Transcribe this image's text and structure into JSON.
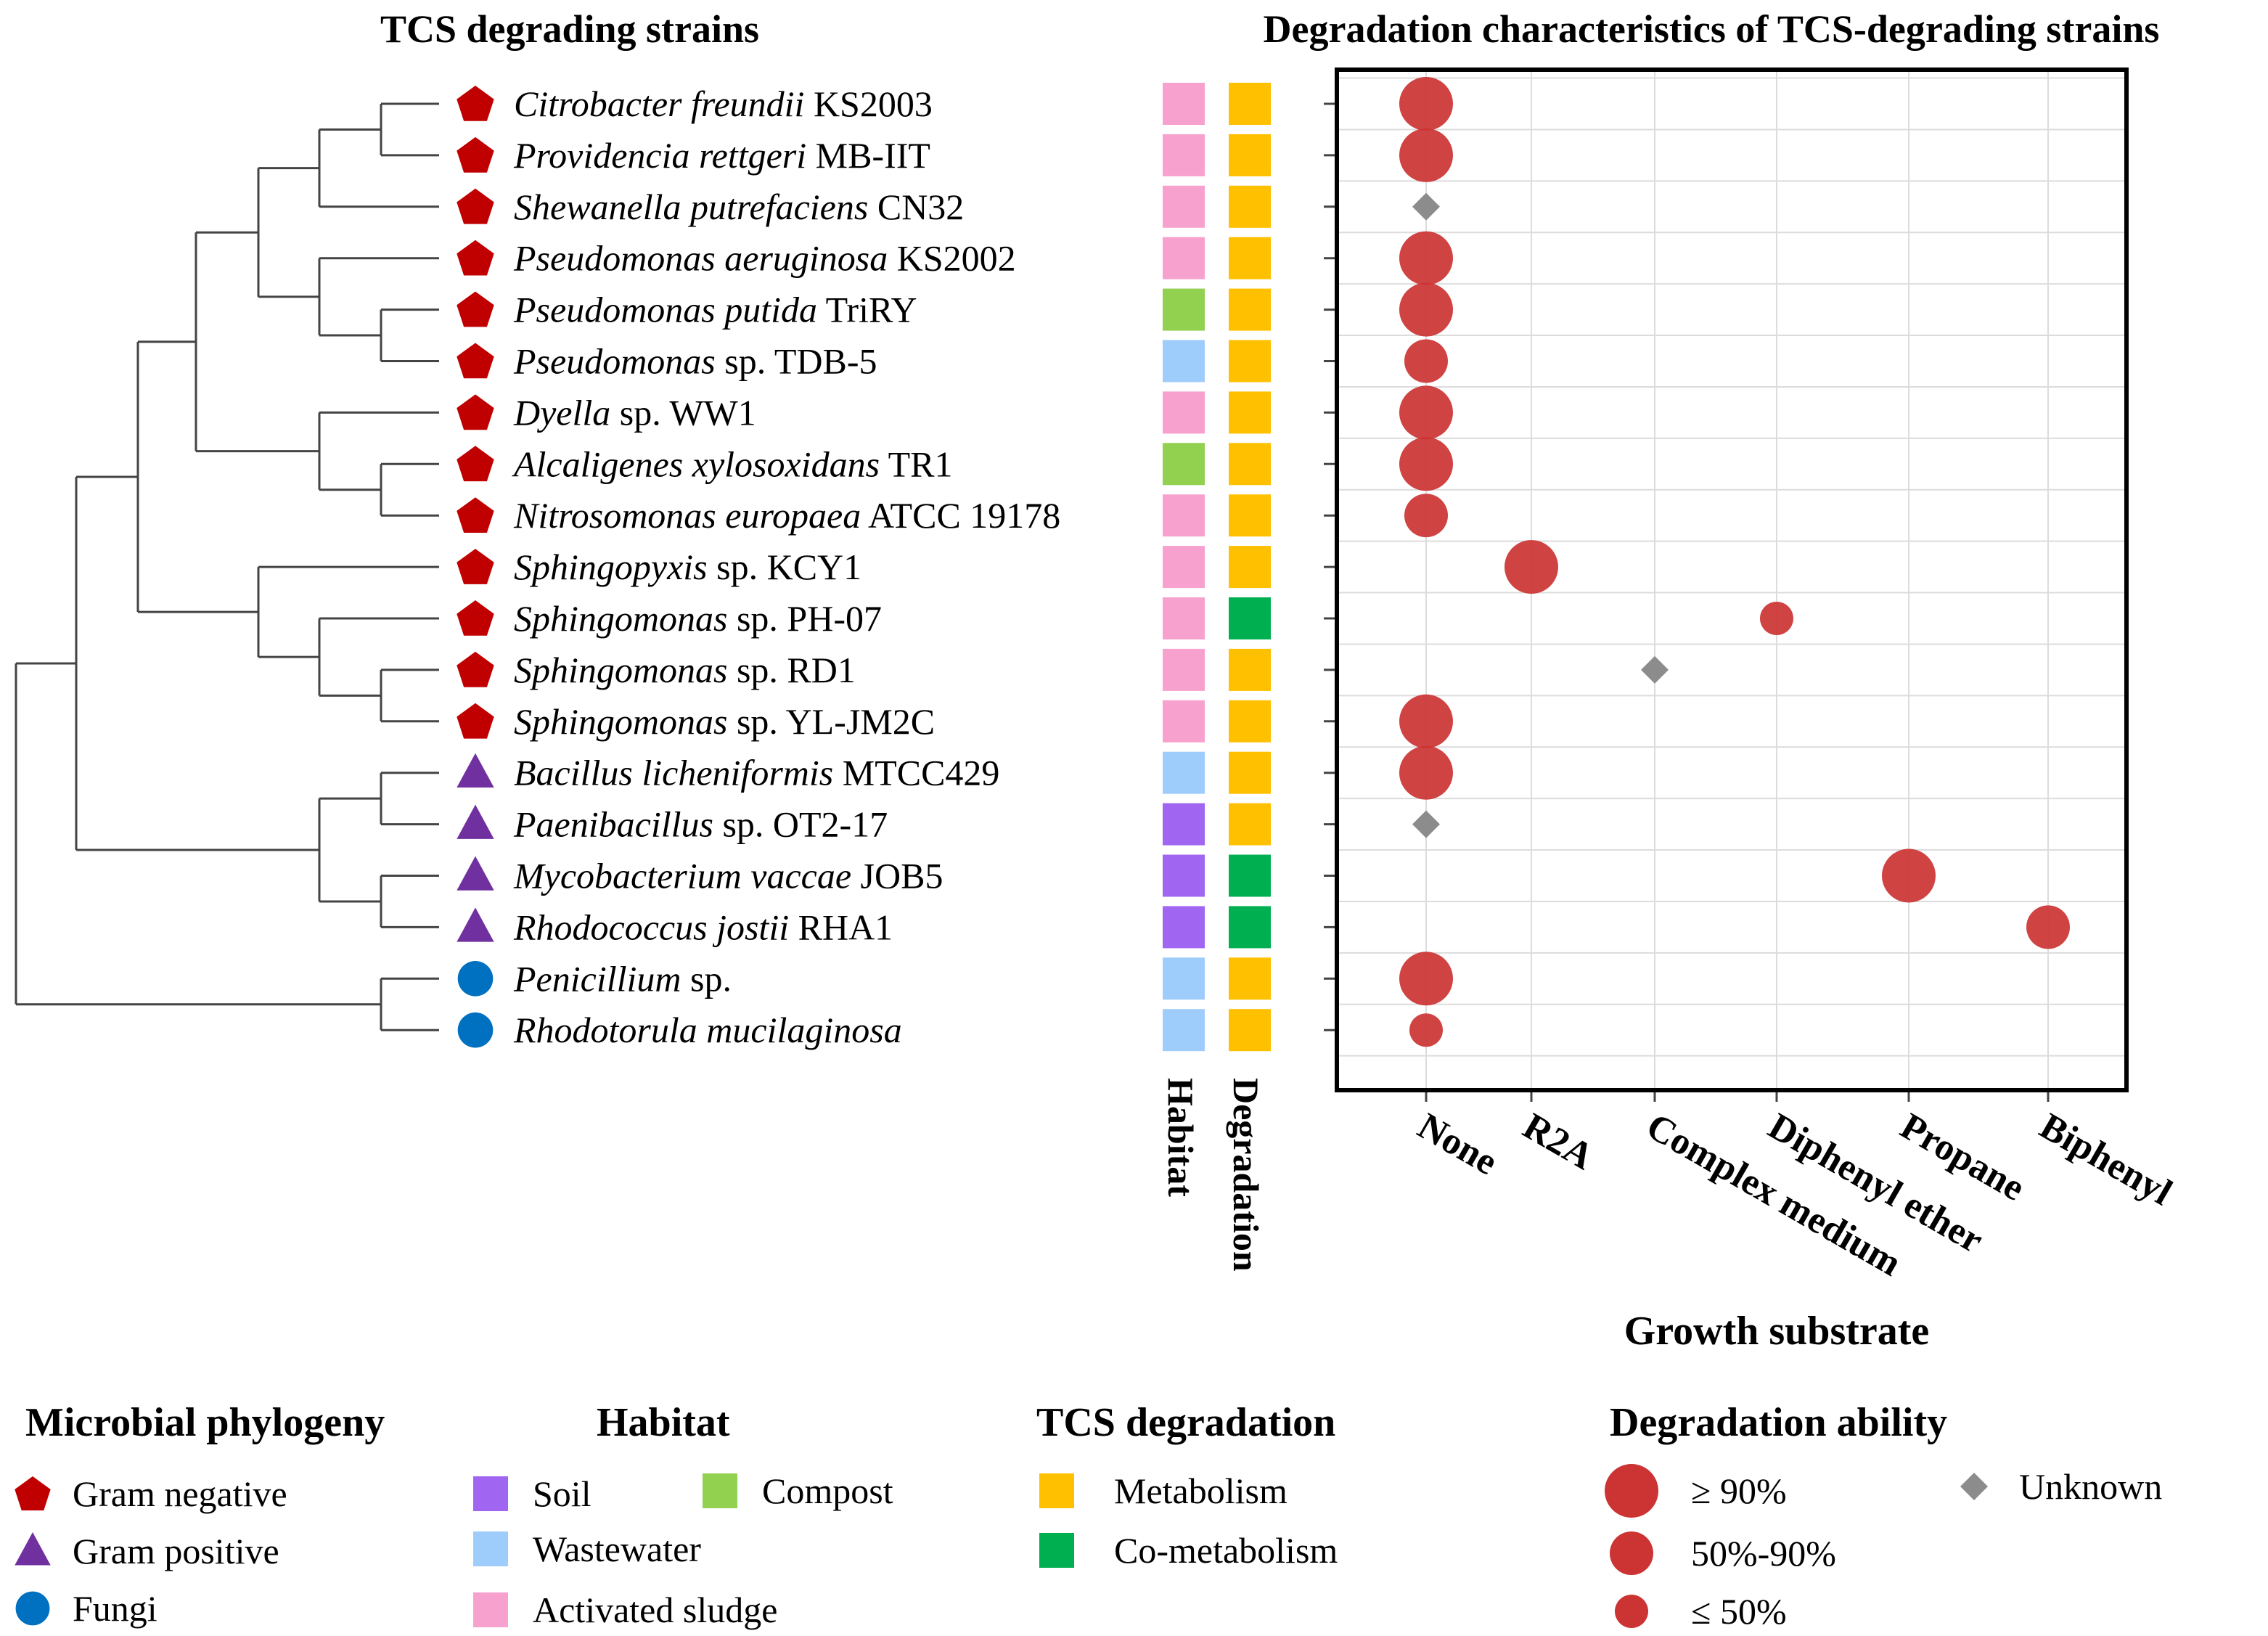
{
  "titles": {
    "tree": "TCS degrading strains",
    "chart": "Degradation characteristics of TCS-degrading strains"
  },
  "column_labels": {
    "habitat": "Habitat",
    "degradation": "Degradation"
  },
  "colors": {
    "gram_negative": "#c00000",
    "gram_positive": "#7030a0",
    "fungi": "#0070c0",
    "soil": "#a066f2",
    "wastewater": "#9fcdfb",
    "activated_sludge": "#f7a1cf",
    "compost": "#92d050",
    "metabolism": "#ffc000",
    "co_metabolism": "#00b050",
    "bubble": "#cc3333",
    "unknown": "#8c8c8c"
  },
  "strains": [
    {
      "genus": "Citrobacter freundii",
      "suffix": " KS2003",
      "group": "gram_negative",
      "habitat": "activated_sludge",
      "degradation": "metabolism"
    },
    {
      "genus": "Providencia rettgeri",
      "suffix": " MB-IIT",
      "group": "gram_negative",
      "habitat": "activated_sludge",
      "degradation": "metabolism"
    },
    {
      "genus": "Shewanella putrefaciens",
      "suffix": " CN32",
      "group": "gram_negative",
      "habitat": "activated_sludge",
      "degradation": "metabolism"
    },
    {
      "genus": "Pseudomonas aeruginosa",
      "suffix": " KS2002",
      "group": "gram_negative",
      "habitat": "activated_sludge",
      "degradation": "metabolism"
    },
    {
      "genus": "Pseudomonas putida",
      "suffix": " TriRY",
      "group": "gram_negative",
      "habitat": "compost",
      "degradation": "metabolism"
    },
    {
      "genus": "Pseudomonas",
      "suffix": " sp. TDB-5",
      "group": "gram_negative",
      "habitat": "wastewater",
      "degradation": "metabolism"
    },
    {
      "genus": "Dyella",
      "suffix": " sp. WW1",
      "group": "gram_negative",
      "habitat": "activated_sludge",
      "degradation": "metabolism"
    },
    {
      "genus": "Alcaligenes xylosoxidans",
      "suffix": " TR1",
      "group": "gram_negative",
      "habitat": "compost",
      "degradation": "metabolism"
    },
    {
      "genus": "Nitrosomonas europaea",
      "suffix": " ATCC 19178",
      "group": "gram_negative",
      "habitat": "activated_sludge",
      "degradation": "metabolism"
    },
    {
      "genus": "Sphingopyxis",
      "suffix": " sp. KCY1",
      "group": "gram_negative",
      "habitat": "activated_sludge",
      "degradation": "metabolism"
    },
    {
      "genus": "Sphingomonas",
      "suffix": " sp. PH-07",
      "group": "gram_negative",
      "habitat": "activated_sludge",
      "degradation": "co_metabolism"
    },
    {
      "genus": "Sphingomonas",
      "suffix": " sp. RD1",
      "group": "gram_negative",
      "habitat": "activated_sludge",
      "degradation": "metabolism"
    },
    {
      "genus": "Sphingomonas",
      "suffix": " sp. YL-JM2C",
      "group": "gram_negative",
      "habitat": "activated_sludge",
      "degradation": "metabolism"
    },
    {
      "genus": "Bacillus licheniformis",
      "suffix": " MTCC429",
      "group": "gram_positive",
      "habitat": "wastewater",
      "degradation": "metabolism"
    },
    {
      "genus": "Paenibacillus",
      "suffix": " sp. OT2-17",
      "group": "gram_positive",
      "habitat": "soil",
      "degradation": "metabolism"
    },
    {
      "genus": "Mycobacterium vaccae",
      "suffix": " JOB5",
      "group": "gram_positive",
      "habitat": "soil",
      "degradation": "co_metabolism"
    },
    {
      "genus": "Rhodococcus jostii",
      "suffix": " RHA1",
      "group": "gram_positive",
      "habitat": "soil",
      "degradation": "co_metabolism"
    },
    {
      "genus": "Penicillium",
      "suffix": " sp.",
      "group": "fungi",
      "habitat": "wastewater",
      "degradation": "metabolism"
    },
    {
      "genus": "Rhodotorula mucilaginosa",
      "suffix": "",
      "group": "fungi",
      "habitat": "wastewater",
      "degradation": "metabolism"
    }
  ],
  "chart_data": {
    "type": "scatter",
    "title": "Degradation characteristics of TCS-degrading strains",
    "xlabel": "Growth substrate",
    "ylabel": "",
    "x_categories": [
      "None",
      "R2A",
      "Complex medium",
      "Diphenyl ether",
      "Propane",
      "Biphenyl"
    ],
    "ability_levels": [
      "≥ 90%",
      "50%-90%",
      "≤ 50%",
      "Unknown"
    ],
    "points": [
      {
        "strain": "Citrobacter freundii KS2003",
        "substrate": "None",
        "ability": "≥ 90%"
      },
      {
        "strain": "Providencia rettgeri MB-IIT",
        "substrate": "None",
        "ability": "≥ 90%"
      },
      {
        "strain": "Shewanella putrefaciens CN32",
        "substrate": "None",
        "ability": "Unknown"
      },
      {
        "strain": "Pseudomonas aeruginosa KS2002",
        "substrate": "None",
        "ability": "≥ 90%"
      },
      {
        "strain": "Pseudomonas putida TriRY",
        "substrate": "None",
        "ability": "≥ 90%"
      },
      {
        "strain": "Pseudomonas sp. TDB-5",
        "substrate": "None",
        "ability": "50%-90%"
      },
      {
        "strain": "Dyella sp. WW1",
        "substrate": "None",
        "ability": "≥ 90%"
      },
      {
        "strain": "Alcaligenes xylosoxidans TR1",
        "substrate": "None",
        "ability": "≥ 90%"
      },
      {
        "strain": "Nitrosomonas europaea ATCC 19178",
        "substrate": "None",
        "ability": "50%-90%"
      },
      {
        "strain": "Sphingopyxis sp. KCY1",
        "substrate": "R2A",
        "ability": "≥ 90%"
      },
      {
        "strain": "Sphingomonas sp. PH-07",
        "substrate": "Diphenyl ether",
        "ability": "≤ 50%"
      },
      {
        "strain": "Sphingomonas sp. RD1",
        "substrate": "Complex medium",
        "ability": "Unknown"
      },
      {
        "strain": "Sphingomonas sp. YL-JM2C",
        "substrate": "None",
        "ability": "≥ 90%"
      },
      {
        "strain": "Bacillus licheniformis MTCC429",
        "substrate": "None",
        "ability": "≥ 90%"
      },
      {
        "strain": "Paenibacillus sp. OT2-17",
        "substrate": "None",
        "ability": "Unknown"
      },
      {
        "strain": "Mycobacterium vaccae JOB5",
        "substrate": "Propane",
        "ability": "≥ 90%"
      },
      {
        "strain": "Rhodococcus jostii RHA1",
        "substrate": "Biphenyl",
        "ability": "50%-90%"
      },
      {
        "strain": "Penicillium sp.",
        "substrate": "None",
        "ability": "≥ 90%"
      },
      {
        "strain": "Rhodotorula mucilaginosa",
        "substrate": "None",
        "ability": "≤ 50%"
      }
    ],
    "grid": true
  },
  "legends": {
    "phylogeny": {
      "title": "Microbial phylogeny",
      "items": [
        {
          "label": "Gram negative",
          "key": "gram_negative",
          "shape": "pentagon"
        },
        {
          "label": "Gram positive",
          "key": "gram_positive",
          "shape": "triangle"
        },
        {
          "label": "Fungi",
          "key": "fungi",
          "shape": "circle"
        }
      ]
    },
    "habitat": {
      "title": "Habitat",
      "items": [
        {
          "label": "Soil",
          "key": "soil"
        },
        {
          "label": "Compost",
          "key": "compost"
        },
        {
          "label": "Wastewater",
          "key": "wastewater"
        },
        {
          "label": "Activated sludge",
          "key": "activated_sludge"
        }
      ]
    },
    "degradation": {
      "title": "TCS degradation",
      "items": [
        {
          "label": "Metabolism",
          "key": "metabolism"
        },
        {
          "label": "Co-metabolism",
          "key": "co_metabolism"
        }
      ]
    },
    "ability": {
      "title": "Degradation ability",
      "items": [
        {
          "label": "≥ 90%",
          "kind": "large"
        },
        {
          "label": "50%-90%",
          "kind": "medium"
        },
        {
          "label": "≤ 50%",
          "kind": "small"
        },
        {
          "label": "Unknown",
          "kind": "unknown"
        }
      ]
    }
  }
}
